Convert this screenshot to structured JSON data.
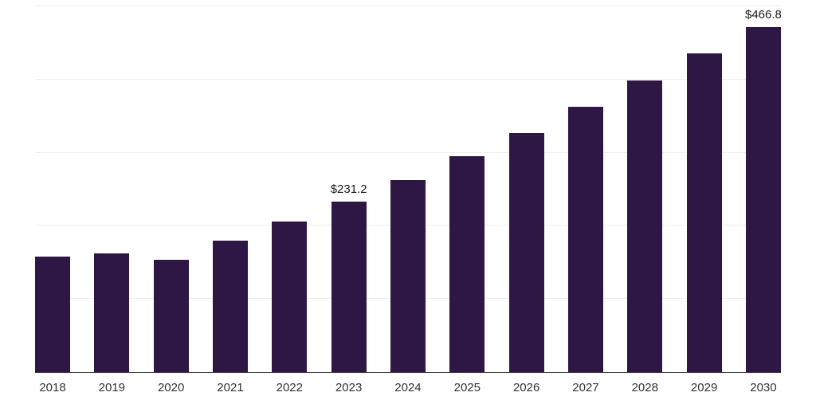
{
  "chart_data": {
    "type": "bar",
    "title": "",
    "xlabel": "",
    "ylabel": "",
    "categories": [
      "2018",
      "2019",
      "2020",
      "2021",
      "2022",
      "2023",
      "2024",
      "2025",
      "2026",
      "2027",
      "2028",
      "2029",
      "2030"
    ],
    "values": [
      156,
      161,
      152,
      178,
      204,
      231.2,
      260,
      292,
      324,
      359,
      395,
      431,
      466.8
    ],
    "data_labels": [
      "",
      "",
      "",
      "",
      "",
      "$231.2",
      "",
      "",
      "",
      "",
      "",
      "",
      "$466.8"
    ],
    "ylim": [
      0,
      495
    ],
    "grid": "horizontal",
    "legend": "none",
    "bar_color": "#2e1745",
    "axis_line_color": "#3d3d3d",
    "gridline_color": "#efefef",
    "label_color": "#333333",
    "value_label_color": "#1a1a1a"
  }
}
